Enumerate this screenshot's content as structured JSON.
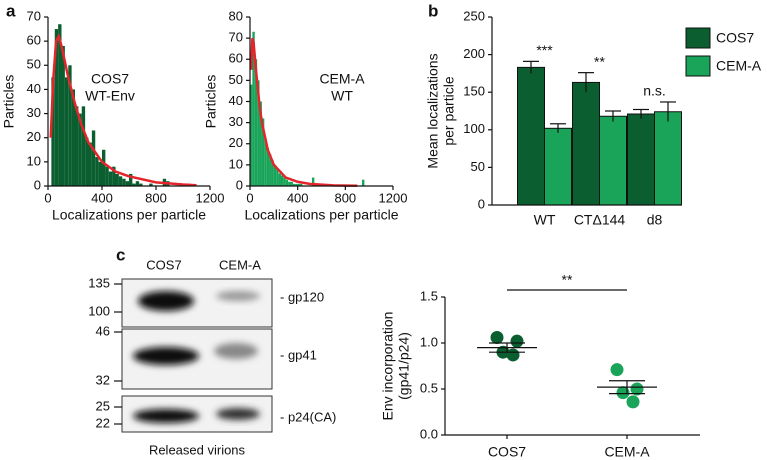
{
  "panels": [
    "a",
    "b",
    "c"
  ],
  "chart_data": [
    {
      "type": "histogram",
      "ylabel": "Particles",
      "xlabel": "Localizations per particle",
      "annotation": [
        "COS7",
        "WT-Env"
      ],
      "color": "#0b5e2f",
      "bins": [
        25,
        50,
        75,
        100,
        125,
        150,
        175,
        200,
        225,
        250,
        275,
        300,
        325,
        350,
        375,
        400,
        425,
        450,
        475,
        500,
        525,
        550,
        575,
        600,
        625,
        650,
        675,
        700,
        725,
        750,
        775,
        800,
        825,
        850,
        875,
        900,
        925,
        950,
        975,
        1000,
        1025,
        1050
      ],
      "values": [
        45,
        65,
        67,
        58,
        45,
        50,
        40,
        33,
        30,
        33,
        20,
        18,
        23,
        12,
        10,
        15,
        8,
        6,
        8,
        5,
        4,
        3,
        2,
        5,
        1,
        2,
        1,
        0,
        0,
        1,
        0,
        0,
        0,
        3,
        2,
        0,
        0,
        0,
        0,
        1,
        1
      ],
      "fit": {
        "color": "#e3262c",
        "x": [
          20,
          40,
          60,
          80,
          100,
          150,
          200,
          250,
          300,
          400,
          500,
          600,
          800,
          1000,
          1100
        ],
        "values": [
          20,
          45,
          60,
          62,
          58,
          45,
          34,
          25,
          18,
          10,
          6,
          4,
          1.5,
          0.6,
          0.3
        ]
      },
      "xlim": [
        0,
        1200
      ],
      "xticks": [
        0,
        400,
        800,
        1200
      ],
      "ylim": [
        0,
        70
      ],
      "yticks": [
        0,
        10,
        20,
        30,
        40,
        50,
        60,
        70
      ]
    },
    {
      "type": "histogram",
      "ylabel": "Particles",
      "xlabel": "Localizations per particle",
      "annotation": [
        "CEM-A",
        "WT"
      ],
      "color": "#19a45a",
      "bins": [
        0,
        20,
        40,
        60,
        80,
        100,
        120,
        140,
        160,
        180,
        200,
        220,
        240,
        260,
        280,
        300,
        320,
        340,
        360,
        380,
        400,
        420,
        440,
        460,
        480,
        500,
        520,
        540,
        560,
        580,
        600,
        620,
        640,
        660,
        680,
        700,
        720,
        740,
        760,
        780,
        800,
        820,
        840,
        860,
        880,
        900,
        920,
        940,
        960,
        980
      ],
      "values": [
        48,
        73,
        60,
        50,
        40,
        32,
        22,
        18,
        15,
        12,
        10,
        8,
        6,
        5,
        4,
        3,
        2,
        2,
        1,
        1,
        1,
        1,
        0,
        0,
        0,
        0,
        4,
        0,
        0,
        0,
        0,
        0,
        0,
        0,
        0,
        0,
        0,
        0,
        0,
        0,
        0,
        0,
        0,
        0,
        0,
        0,
        0,
        3,
        0
      ],
      "fit": {
        "color": "#e3262c",
        "x": [
          10,
          20,
          30,
          50,
          80,
          100,
          150,
          200,
          300,
          400,
          500,
          700,
          900
        ],
        "values": [
          55,
          70,
          68,
          55,
          38,
          30,
          17,
          10,
          4,
          2,
          1,
          0.3,
          0.1
        ]
      },
      "xlim": [
        0,
        1200
      ],
      "xticks": [
        0,
        400,
        800,
        1200
      ],
      "ylim": [
        0,
        80
      ],
      "yticks": [
        0,
        10,
        20,
        30,
        40,
        50,
        60,
        70,
        80
      ]
    },
    {
      "type": "bar",
      "ylabel": [
        "Mean localizations",
        "per particle"
      ],
      "categories": [
        "WT",
        "CTΔ144",
        "d8"
      ],
      "series": [
        {
          "name": "COS7",
          "color": "#0b5e2f",
          "values": [
            183,
            163,
            121
          ],
          "errors": [
            8,
            13,
            6
          ]
        },
        {
          "name": "CEM-A",
          "color": "#19a45a",
          "values": [
            102,
            118,
            124
          ],
          "errors": [
            6,
            7,
            13
          ]
        }
      ],
      "annotations": [
        "***",
        "**",
        "n.s."
      ],
      "ylim": [
        0,
        250
      ],
      "yticks": [
        0,
        50,
        100,
        150,
        200,
        250
      ]
    },
    {
      "type": "dotplot",
      "ylabel": [
        "Env incorporation",
        "(gp41/p24)"
      ],
      "categories": [
        "COS7",
        "CEM-A"
      ],
      "groups": [
        {
          "color": "#0b5e2f",
          "values": [
            1.06,
            1.02,
            0.9,
            0.87
          ],
          "mean": 0.95,
          "sem": 0.05
        },
        {
          "color": "#19a45a",
          "values": [
            0.71,
            0.5,
            0.46,
            0.36
          ],
          "mean": 0.52,
          "sem": 0.07
        }
      ],
      "significance": "**",
      "ylim": [
        0,
        1.5
      ],
      "yticks": [
        {
          "value": 0,
          "label": "0.0"
        },
        0.5,
        {
          "value": 1,
          "label": "1.0"
        },
        1.5
      ]
    }
  ],
  "blot": {
    "lanes": [
      "COS7",
      "CEM-A"
    ],
    "markers": [
      135,
      100,
      46,
      32,
      25,
      22
    ],
    "bands": [
      "- gp120",
      "- gp41",
      "- p24(CA)"
    ],
    "caption": "Released virions"
  }
}
